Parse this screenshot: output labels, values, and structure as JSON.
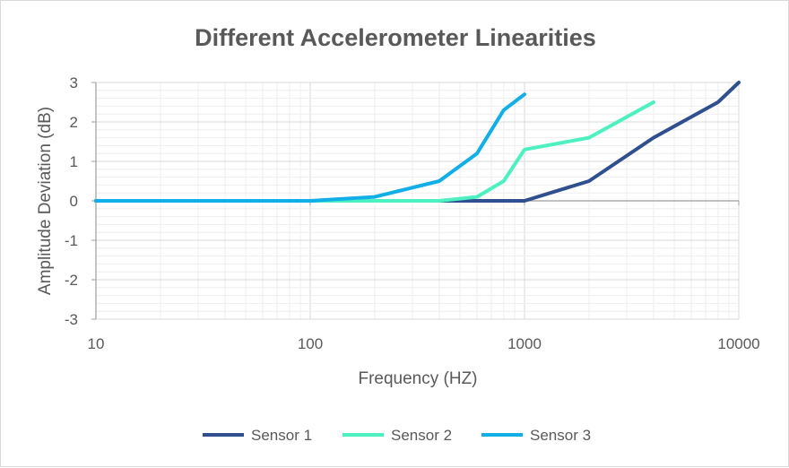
{
  "chart_data": {
    "type": "line",
    "title": "Different Accelerometer Linearities",
    "xlabel": "Frequency (HZ)",
    "ylabel": "Amplitude Deviation (dB)",
    "xscale": "log",
    "xlim": [
      10,
      10000
    ],
    "ylim": [
      -3,
      3
    ],
    "xticks": [
      "10",
      "100",
      "1000",
      "10000"
    ],
    "yticks": [
      "3",
      "2",
      "1",
      "0",
      "-1",
      "-2",
      "-3"
    ],
    "grid": true,
    "legend_position": "bottom",
    "series": [
      {
        "name": "Sensor 1",
        "color": "#2f4f8f",
        "points": [
          [
            10,
            0
          ],
          [
            100,
            0
          ],
          [
            400,
            0
          ],
          [
            1000,
            0
          ],
          [
            2000,
            0.5
          ],
          [
            4000,
            1.6
          ],
          [
            8000,
            2.5
          ],
          [
            10000,
            3.0
          ]
        ]
      },
      {
        "name": "Sensor 2",
        "color": "#4df0c0",
        "points": [
          [
            10,
            0
          ],
          [
            100,
            0
          ],
          [
            400,
            0
          ],
          [
            600,
            0.1
          ],
          [
            800,
            0.5
          ],
          [
            1000,
            1.3
          ],
          [
            2000,
            1.6
          ],
          [
            4000,
            2.5
          ]
        ]
      },
      {
        "name": "Sensor 3",
        "color": "#11aee8",
        "points": [
          [
            10,
            0
          ],
          [
            100,
            0
          ],
          [
            200,
            0.1
          ],
          [
            400,
            0.5
          ],
          [
            600,
            1.2
          ],
          [
            800,
            2.3
          ],
          [
            1000,
            2.7
          ]
        ]
      }
    ]
  }
}
